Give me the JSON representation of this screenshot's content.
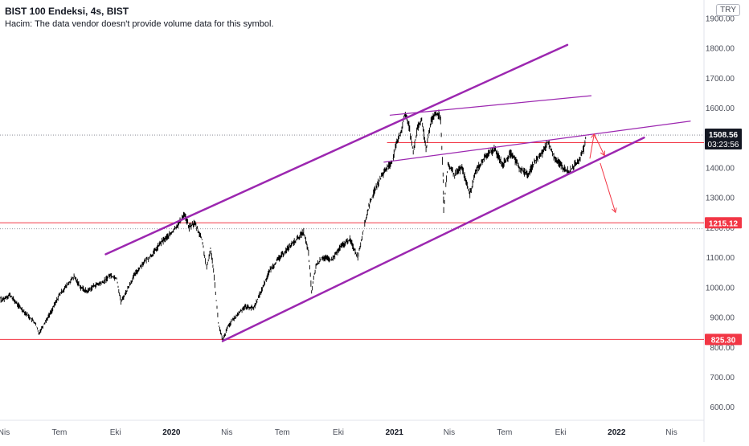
{
  "header": {
    "title": "BIST 100 Endeksi, 4s, BIST",
    "volume_notice": "Hacim: The data vendor doesn't provide volume data for this symbol."
  },
  "currency_button": "TRY",
  "colors": {
    "price_line": "#000000",
    "trendline": "#9c27b0",
    "level_line": "#f23645",
    "arrow": "#f23645",
    "current_price_bg": "#131722",
    "axis_text": "#4a4e59",
    "grid_dotted": "#787b86"
  },
  "chart_data": {
    "type": "line",
    "title": "BIST 100 Endeksi, 4s, BIST",
    "ylabel": "",
    "xlabel": "",
    "ylim": [
      555,
      1960
    ],
    "x_range": [
      "2019-04-01",
      "2022-05-02"
    ],
    "x_ticks": [
      {
        "date": "2019-04-01",
        "label": "Nis"
      },
      {
        "date": "2019-07-01",
        "label": "Tem"
      },
      {
        "date": "2019-10-01",
        "label": "Eki"
      },
      {
        "date": "2020-01-01",
        "label": "2020"
      },
      {
        "date": "2020-04-01",
        "label": "Nis"
      },
      {
        "date": "2020-07-01",
        "label": "Tem"
      },
      {
        "date": "2020-10-01",
        "label": "Eki"
      },
      {
        "date": "2021-01-01",
        "label": "2021"
      },
      {
        "date": "2021-04-01",
        "label": "Nis"
      },
      {
        "date": "2021-07-01",
        "label": "Tem"
      },
      {
        "date": "2021-10-01",
        "label": "Eki"
      },
      {
        "date": "2022-01-01",
        "label": "2022"
      },
      {
        "date": "2022-04-01",
        "label": "Nis"
      }
    ],
    "y_ticks": [
      600,
      700,
      800,
      900,
      1000,
      1100,
      1200,
      1300,
      1400,
      1500,
      1600,
      1700,
      1800,
      1900
    ],
    "y_tick_labels": [
      "600.00",
      "700.00",
      "800.00",
      "900.00",
      "1000.00",
      "1100.00",
      "1200.00",
      "1300.00",
      "1400.00",
      "1500.00",
      "1600.00",
      "1700.00",
      "1800.00",
      "1900.00"
    ],
    "series": [
      {
        "values": [
          [
            "2019-03-15",
            1005
          ],
          [
            "2019-03-28",
            955
          ],
          [
            "2019-04-10",
            975
          ],
          [
            "2019-04-24",
            940
          ],
          [
            "2019-05-08",
            910
          ],
          [
            "2019-05-22",
            880
          ],
          [
            "2019-05-28",
            845
          ],
          [
            "2019-06-05",
            875
          ],
          [
            "2019-06-18",
            920
          ],
          [
            "2019-07-01",
            975
          ],
          [
            "2019-07-15",
            1010
          ],
          [
            "2019-07-25",
            1035
          ],
          [
            "2019-08-05",
            1000
          ],
          [
            "2019-08-15",
            985
          ],
          [
            "2019-08-27",
            1005
          ],
          [
            "2019-09-10",
            1015
          ],
          [
            "2019-09-22",
            1040
          ],
          [
            "2019-10-03",
            1030
          ],
          [
            "2019-10-10",
            950
          ],
          [
            "2019-10-20",
            990
          ],
          [
            "2019-11-01",
            1040
          ],
          [
            "2019-11-15",
            1080
          ],
          [
            "2019-12-01",
            1110
          ],
          [
            "2019-12-15",
            1150
          ],
          [
            "2020-01-01",
            1180
          ],
          [
            "2020-01-15",
            1220
          ],
          [
            "2020-01-22",
            1245
          ],
          [
            "2020-01-30",
            1200
          ],
          [
            "2020-02-08",
            1215
          ],
          [
            "2020-02-20",
            1160
          ],
          [
            "2020-02-28",
            1060
          ],
          [
            "2020-03-05",
            1130
          ],
          [
            "2020-03-10",
            1060
          ],
          [
            "2020-03-18",
            880
          ],
          [
            "2020-03-25",
            820
          ],
          [
            "2020-04-03",
            870
          ],
          [
            "2020-04-15",
            900
          ],
          [
            "2020-04-30",
            935
          ],
          [
            "2020-05-15",
            930
          ],
          [
            "2020-05-28",
            990
          ],
          [
            "2020-06-10",
            1055
          ],
          [
            "2020-06-25",
            1095
          ],
          [
            "2020-07-10",
            1130
          ],
          [
            "2020-07-25",
            1160
          ],
          [
            "2020-08-05",
            1185
          ],
          [
            "2020-08-13",
            1115
          ],
          [
            "2020-08-18",
            985
          ],
          [
            "2020-08-25",
            1070
          ],
          [
            "2020-09-05",
            1100
          ],
          [
            "2020-09-20",
            1090
          ],
          [
            "2020-10-05",
            1135
          ],
          [
            "2020-10-20",
            1160
          ],
          [
            "2020-11-02",
            1100
          ],
          [
            "2020-11-10",
            1180
          ],
          [
            "2020-11-20",
            1270
          ],
          [
            "2020-12-01",
            1330
          ],
          [
            "2020-12-15",
            1385
          ],
          [
            "2020-12-28",
            1420
          ],
          [
            "2021-01-05",
            1480
          ],
          [
            "2021-01-12",
            1520
          ],
          [
            "2021-01-18",
            1580
          ],
          [
            "2021-01-25",
            1540
          ],
          [
            "2021-02-01",
            1455
          ],
          [
            "2021-02-08",
            1530
          ],
          [
            "2021-02-15",
            1560
          ],
          [
            "2021-02-22",
            1460
          ],
          [
            "2021-03-01",
            1545
          ],
          [
            "2021-03-08",
            1575
          ],
          [
            "2021-03-15",
            1580
          ],
          [
            "2021-03-18",
            1560
          ],
          [
            "2021-03-22",
            1380
          ],
          [
            "2021-03-23",
            1260
          ],
          [
            "2021-03-30",
            1410
          ],
          [
            "2021-04-10",
            1375
          ],
          [
            "2021-04-22",
            1400
          ],
          [
            "2021-05-05",
            1310
          ],
          [
            "2021-05-15",
            1390
          ],
          [
            "2021-06-01",
            1440
          ],
          [
            "2021-06-15",
            1460
          ],
          [
            "2021-06-28",
            1410
          ],
          [
            "2021-07-12",
            1450
          ],
          [
            "2021-07-25",
            1400
          ],
          [
            "2021-08-08",
            1375
          ],
          [
            "2021-08-20",
            1420
          ],
          [
            "2021-09-01",
            1450
          ],
          [
            "2021-09-10",
            1485
          ],
          [
            "2021-09-22",
            1430
          ],
          [
            "2021-10-05",
            1400
          ],
          [
            "2021-10-15",
            1385
          ],
          [
            "2021-10-25",
            1410
          ],
          [
            "2021-11-01",
            1430
          ],
          [
            "2021-11-08",
            1460
          ],
          [
            "2021-11-12",
            1508
          ]
        ]
      }
    ],
    "trendlines": [
      {
        "name": "upper-channel",
        "from": [
          "2019-09-15",
          1110
        ],
        "to": [
          "2021-10-12",
          1810
        ],
        "width": 2.5
      },
      {
        "name": "lower-channel",
        "from": [
          "2020-03-25",
          820
        ],
        "to": [
          "2022-02-15",
          1500
        ],
        "width": 2.5
      },
      {
        "name": "top-resistance",
        "from": [
          "2020-12-25",
          1575
        ],
        "to": [
          "2021-11-20",
          1640
        ],
        "width": 1.2
      },
      {
        "name": "rising-wedge-top",
        "from": [
          "2020-12-15",
          1418
        ],
        "to": [
          "2022-05-02",
          1555
        ],
        "width": 1.2
      }
    ],
    "levels": [
      {
        "value": 1483.19,
        "label": "1483.19",
        "start": "2020-12-20"
      },
      {
        "value": 1215.12,
        "label": "1215.12",
        "start": "2019-03-15"
      },
      {
        "value": 825.3,
        "label": "825.30",
        "start": "2019-03-15"
      }
    ],
    "dotted_levels": [
      1508.56,
      1195
    ],
    "projection_arrows": [
      [
        [
          "2021-11-18",
          1430
        ],
        [
          "2021-11-25",
          1512
        ]
      ],
      [
        [
          "2021-11-25",
          1512
        ],
        [
          "2021-12-12",
          1440
        ]
      ],
      [
        [
          "2021-12-05",
          1415
        ],
        [
          "2021-12-30",
          1250
        ]
      ]
    ],
    "current_price": {
      "value": 1508.56,
      "label": "1508.56",
      "countdown": "03:23:56"
    }
  }
}
